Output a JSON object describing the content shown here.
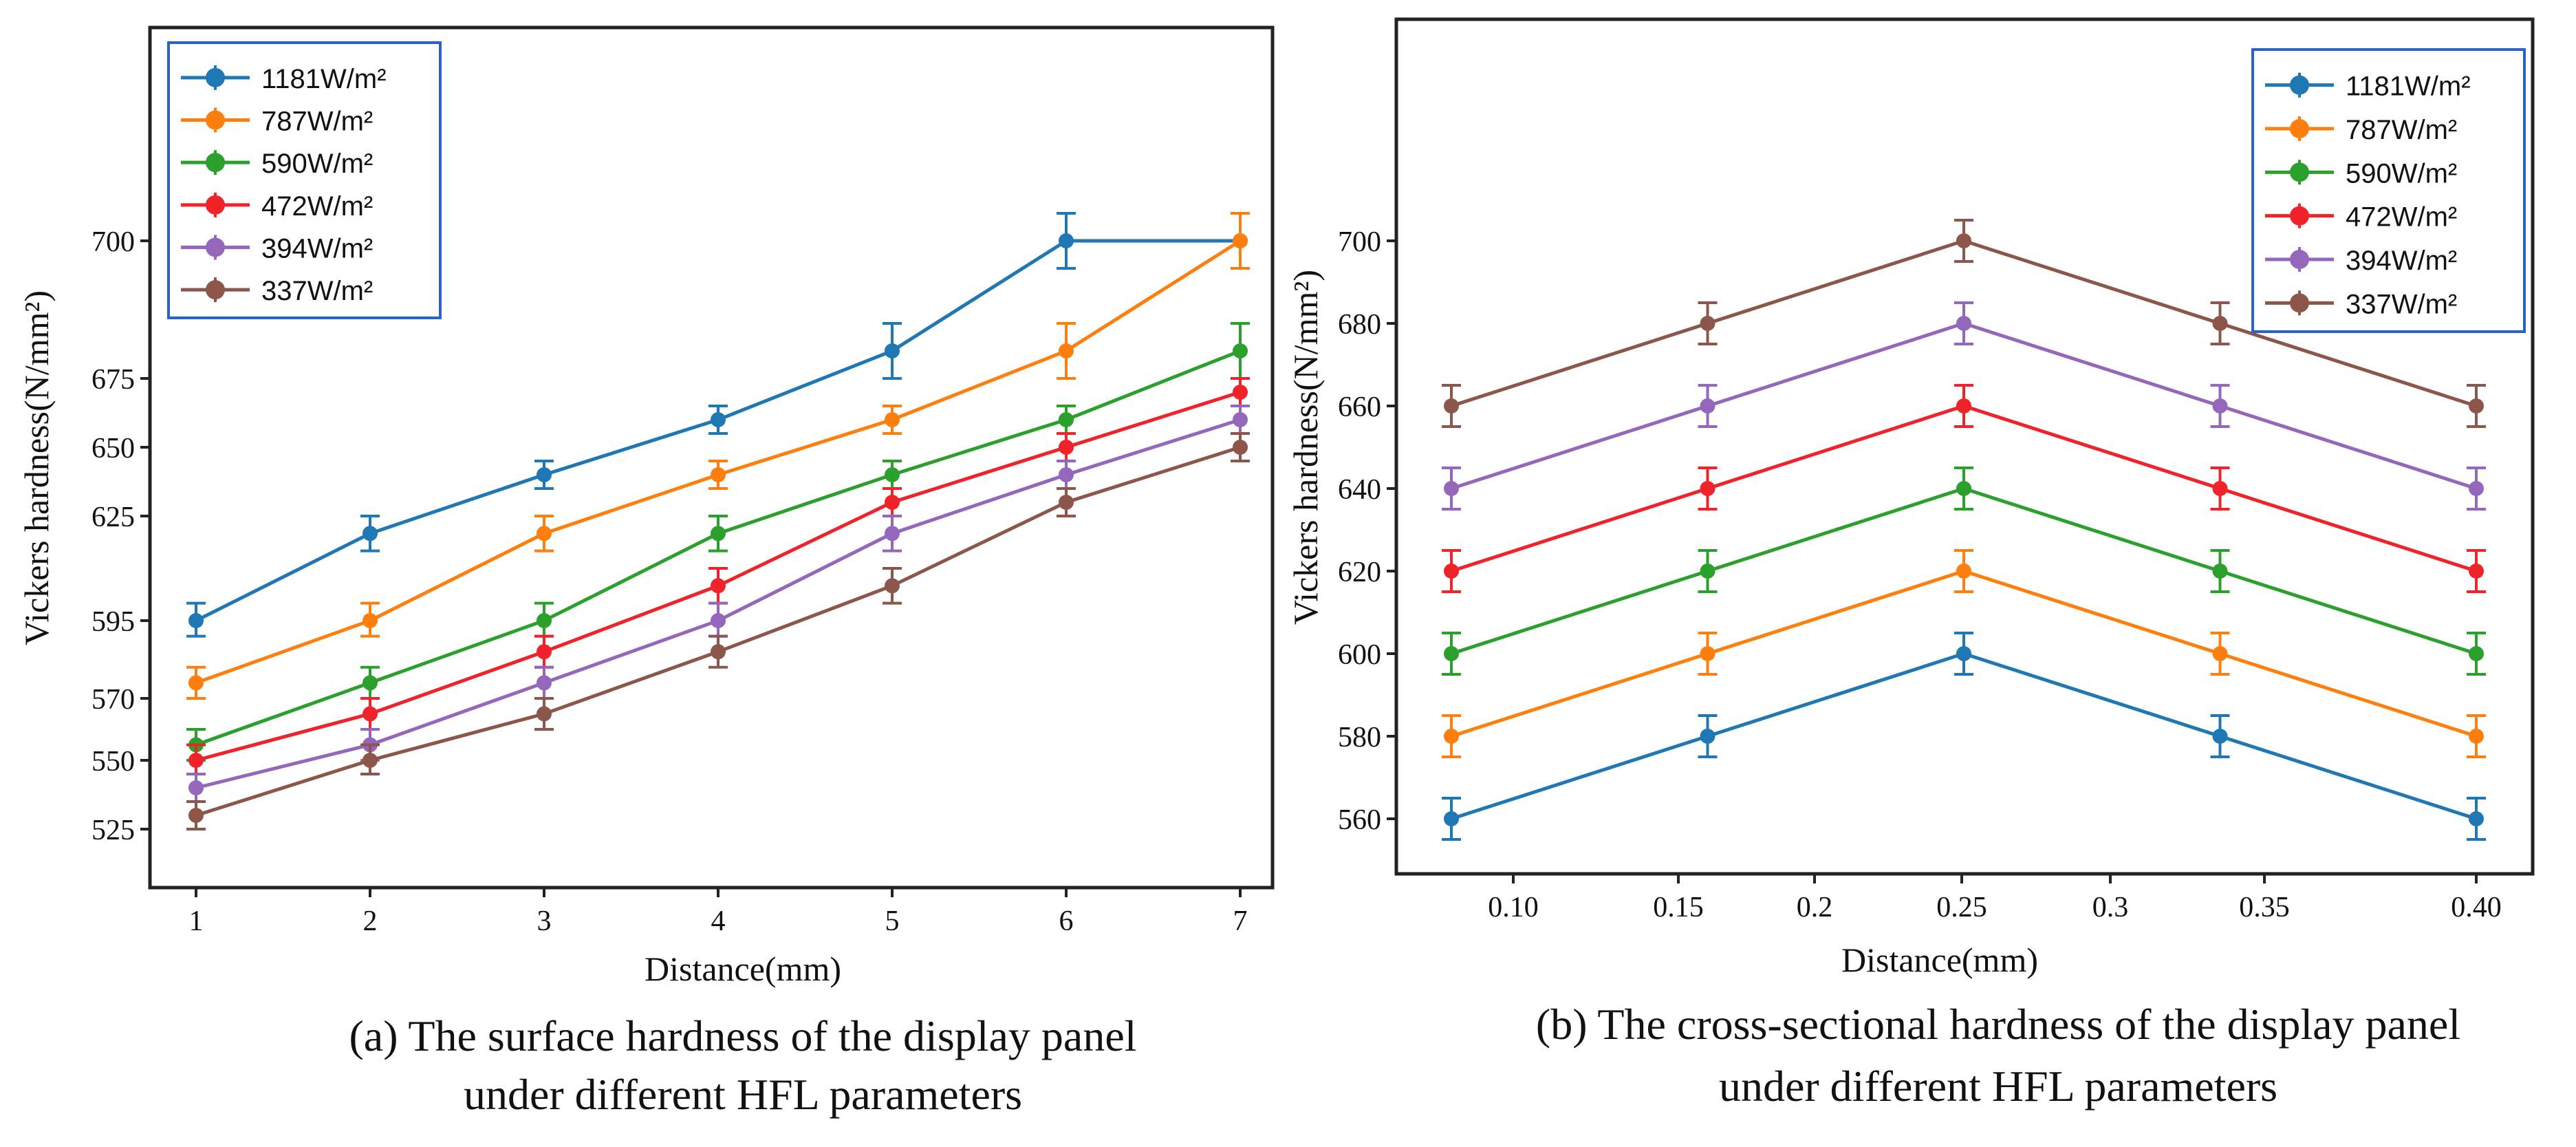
{
  "figure": {
    "captions": [
      [
        "(a) The surface hardness of the display panel",
        "under different HFL parameters"
      ],
      [
        "(b) The cross-sectional hardness of the display panel",
        "under different HFL parameters"
      ]
    ]
  },
  "legend": {
    "labels": [
      "1181W/m²",
      "787W/m²",
      "590W/m²",
      "472W/m²",
      "394W/m²",
      "337W/m²"
    ],
    "colors": [
      "#1f77b4",
      "#ff7f0e",
      "#2ca02c",
      "#f0232a",
      "#9467bd",
      "#8c564b"
    ],
    "placement": [
      "top-left",
      "top-right"
    ]
  },
  "chart_data": [
    {
      "type": "line",
      "xlabel": "Distance(mm)",
      "ylabel": "Vickers hardness(N/mm²)",
      "x": [
        1,
        2,
        3,
        4,
        5,
        6,
        7
      ],
      "x_ticks": [
        "1",
        "2",
        "3",
        "4",
        "5",
        "6",
        "7"
      ],
      "y_ticks": [
        "525",
        "550",
        "570",
        "595",
        "625",
        "650",
        "675",
        "700"
      ],
      "error_bar": 5,
      "series": [
        {
          "name": "1181W/m²",
          "values": [
            595,
            620,
            640,
            660,
            680,
            700,
            700
          ]
        },
        {
          "name": "787W/m²",
          "values": [
            575,
            595,
            620,
            640,
            660,
            680,
            700
          ]
        },
        {
          "name": "590W/m²",
          "values": [
            555,
            575,
            595,
            620,
            640,
            660,
            680
          ]
        },
        {
          "name": "472W/m²",
          "values": [
            550,
            565,
            585,
            605,
            630,
            650,
            670
          ]
        },
        {
          "name": "394W/m²",
          "values": [
            540,
            555,
            575,
            595,
            620,
            640,
            660
          ]
        },
        {
          "name": "337W/m²",
          "values": [
            530,
            550,
            565,
            585,
            605,
            630,
            650
          ]
        }
      ]
    },
    {
      "type": "line",
      "xlabel": "Distance(mm)",
      "ylabel": "Vickers hardness(N/mm²)",
      "x": [
        0.08,
        0.16,
        0.24,
        0.32,
        0.4
      ],
      "x_ticks": [
        "0.10",
        "0.15",
        "0.2",
        "0.25",
        "0.3",
        "0.35",
        "0.40"
      ],
      "y_ticks": [
        "560",
        "580",
        "600",
        "620",
        "640",
        "660",
        "680",
        "700"
      ],
      "error_bar": 5,
      "series": [
        {
          "name": "1181W/m²",
          "values": [
            560,
            580,
            600,
            580,
            560
          ]
        },
        {
          "name": "787W/m²",
          "values": [
            580,
            600,
            620,
            600,
            580
          ]
        },
        {
          "name": "590W/m²",
          "values": [
            600,
            620,
            640,
            620,
            600
          ]
        },
        {
          "name": "472W/m²",
          "values": [
            620,
            640,
            660,
            640,
            620
          ]
        },
        {
          "name": "394W/m²",
          "values": [
            640,
            660,
            680,
            660,
            640
          ]
        },
        {
          "name": "337W/m²",
          "values": [
            660,
            680,
            700,
            680,
            660
          ]
        }
      ]
    }
  ]
}
